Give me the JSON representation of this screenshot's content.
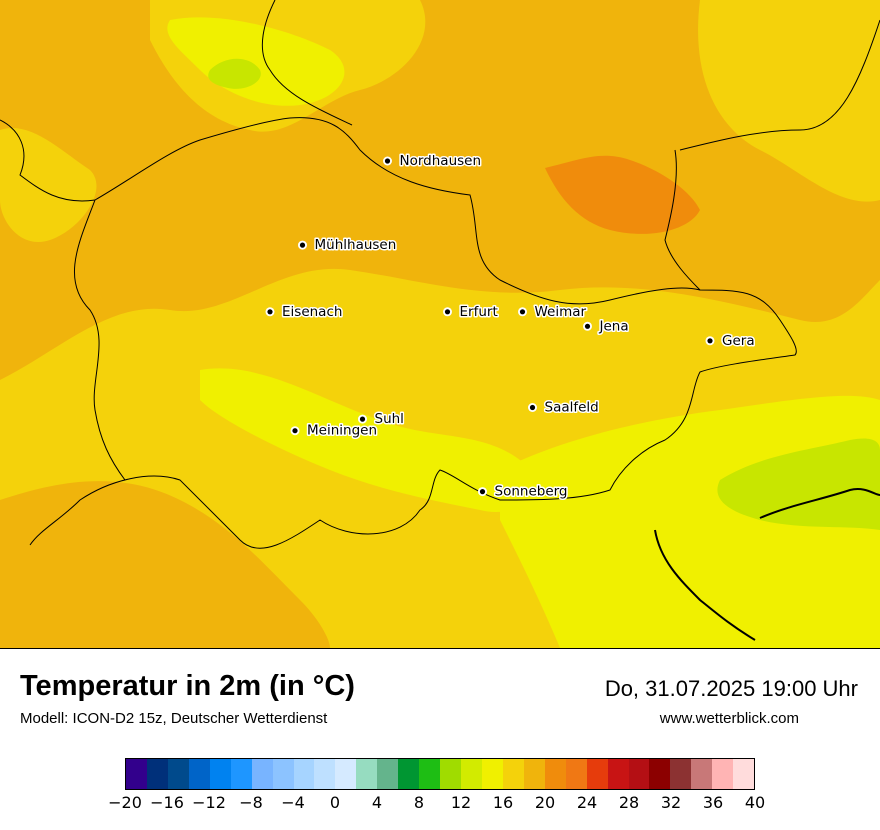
{
  "map": {
    "cities": [
      {
        "name": "Nordhausen",
        "lon": 10.79,
        "lat": 51.5
      },
      {
        "name": "Mühlhausen",
        "lon": 10.45,
        "lat": 51.21
      },
      {
        "name": "Eisenach",
        "lon": 10.32,
        "lat": 50.98
      },
      {
        "name": "Erfurt",
        "lon": 11.03,
        "lat": 50.98
      },
      {
        "name": "Weimar",
        "lon": 11.33,
        "lat": 50.98
      },
      {
        "name": "Jena",
        "lon": 11.59,
        "lat": 50.93
      },
      {
        "name": "Gera",
        "lon": 12.08,
        "lat": 50.88
      },
      {
        "name": "Saalfeld",
        "lon": 11.37,
        "lat": 50.65
      },
      {
        "name": "Suhl",
        "lon": 10.69,
        "lat": 50.61
      },
      {
        "name": "Meiningen",
        "lon": 10.42,
        "lat": 50.57
      },
      {
        "name": "Sonneberg",
        "lon": 11.17,
        "lat": 50.36
      }
    ],
    "colors": {
      "base": "#f0b40c",
      "mid": "#f4d20b",
      "warm": "#f5a50a",
      "hot": "#f08c0c",
      "light": "#f0f000",
      "green": "#c8e600",
      "border": "#000000"
    }
  },
  "title": "Temperatur in 2m (in °C)",
  "model": "Modell: ICON-D2 15z, Deutscher Wetterdienst",
  "datetime": "Do, 31.07.2025 19:00 Uhr",
  "website": "www.wetterblick.com",
  "legend": {
    "colors": [
      "#32008c",
      "#00307a",
      "#004a8c",
      "#0064c8",
      "#0082f0",
      "#1e96ff",
      "#78b4ff",
      "#8cc3ff",
      "#a6d4ff",
      "#bee0ff",
      "#d5eaff",
      "#96dcc0",
      "#64b48c",
      "#009632",
      "#1ebe14",
      "#a0dc00",
      "#d2eb00",
      "#f0f000",
      "#f4d20b",
      "#f0b40c",
      "#f08c0c",
      "#f07814",
      "#e63c0c",
      "#c81414",
      "#b40f14",
      "#8c0000",
      "#8c3232",
      "#c87878",
      "#ffb4b4",
      "#ffdcdc"
    ],
    "ticks": [
      "−20",
      "−16",
      "−12",
      "−8",
      "−4",
      "0",
      "4",
      "8",
      "12",
      "16",
      "20",
      "24",
      "28",
      "32",
      "36",
      "40"
    ],
    "min": -20,
    "max": 40
  }
}
